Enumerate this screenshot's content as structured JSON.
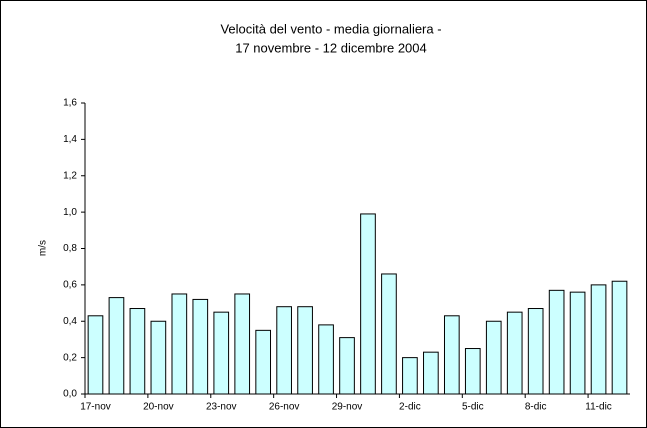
{
  "chart_data": {
    "type": "bar",
    "title": "Velocità del vento - media giornaliera -",
    "subtitle": "17 novembre - 12 dicembre 2004",
    "y_label": "m/s",
    "categories": [
      "17-nov",
      null,
      null,
      "20-nov",
      null,
      null,
      "23-nov",
      null,
      null,
      "26-nov",
      null,
      null,
      "29-nov",
      null,
      null,
      "2-dic",
      null,
      null,
      "5-dic",
      null,
      null,
      "8-dic",
      null,
      null,
      "11-dic",
      null
    ],
    "values": [
      0.43,
      0.53,
      0.47,
      0.4,
      0.55,
      0.52,
      0.45,
      0.55,
      0.35,
      0.48,
      0.48,
      0.38,
      0.31,
      0.99,
      0.66,
      0.2,
      0.23,
      0.43,
      0.25,
      0.4,
      0.45,
      0.47,
      0.57,
      0.56,
      0.6,
      0.62
    ],
    "color": "#ccffff",
    "ylim": [
      0,
      1.6
    ],
    "yticks": [
      {
        "value": 0,
        "label": "0,0"
      },
      {
        "value": 0.2,
        "label": "0,2"
      },
      {
        "value": 0.4,
        "label": "0,4"
      },
      {
        "value": 0.6,
        "label": "0,6"
      },
      {
        "value": 0.8,
        "label": "0,8"
      },
      {
        "value": 1.0,
        "label": "1,0"
      },
      {
        "value": 1.2,
        "label": "1,2"
      },
      {
        "value": 1.4,
        "label": "1,4"
      },
      {
        "value": 1.6,
        "label": "1,6"
      }
    ],
    "grid": false
  }
}
